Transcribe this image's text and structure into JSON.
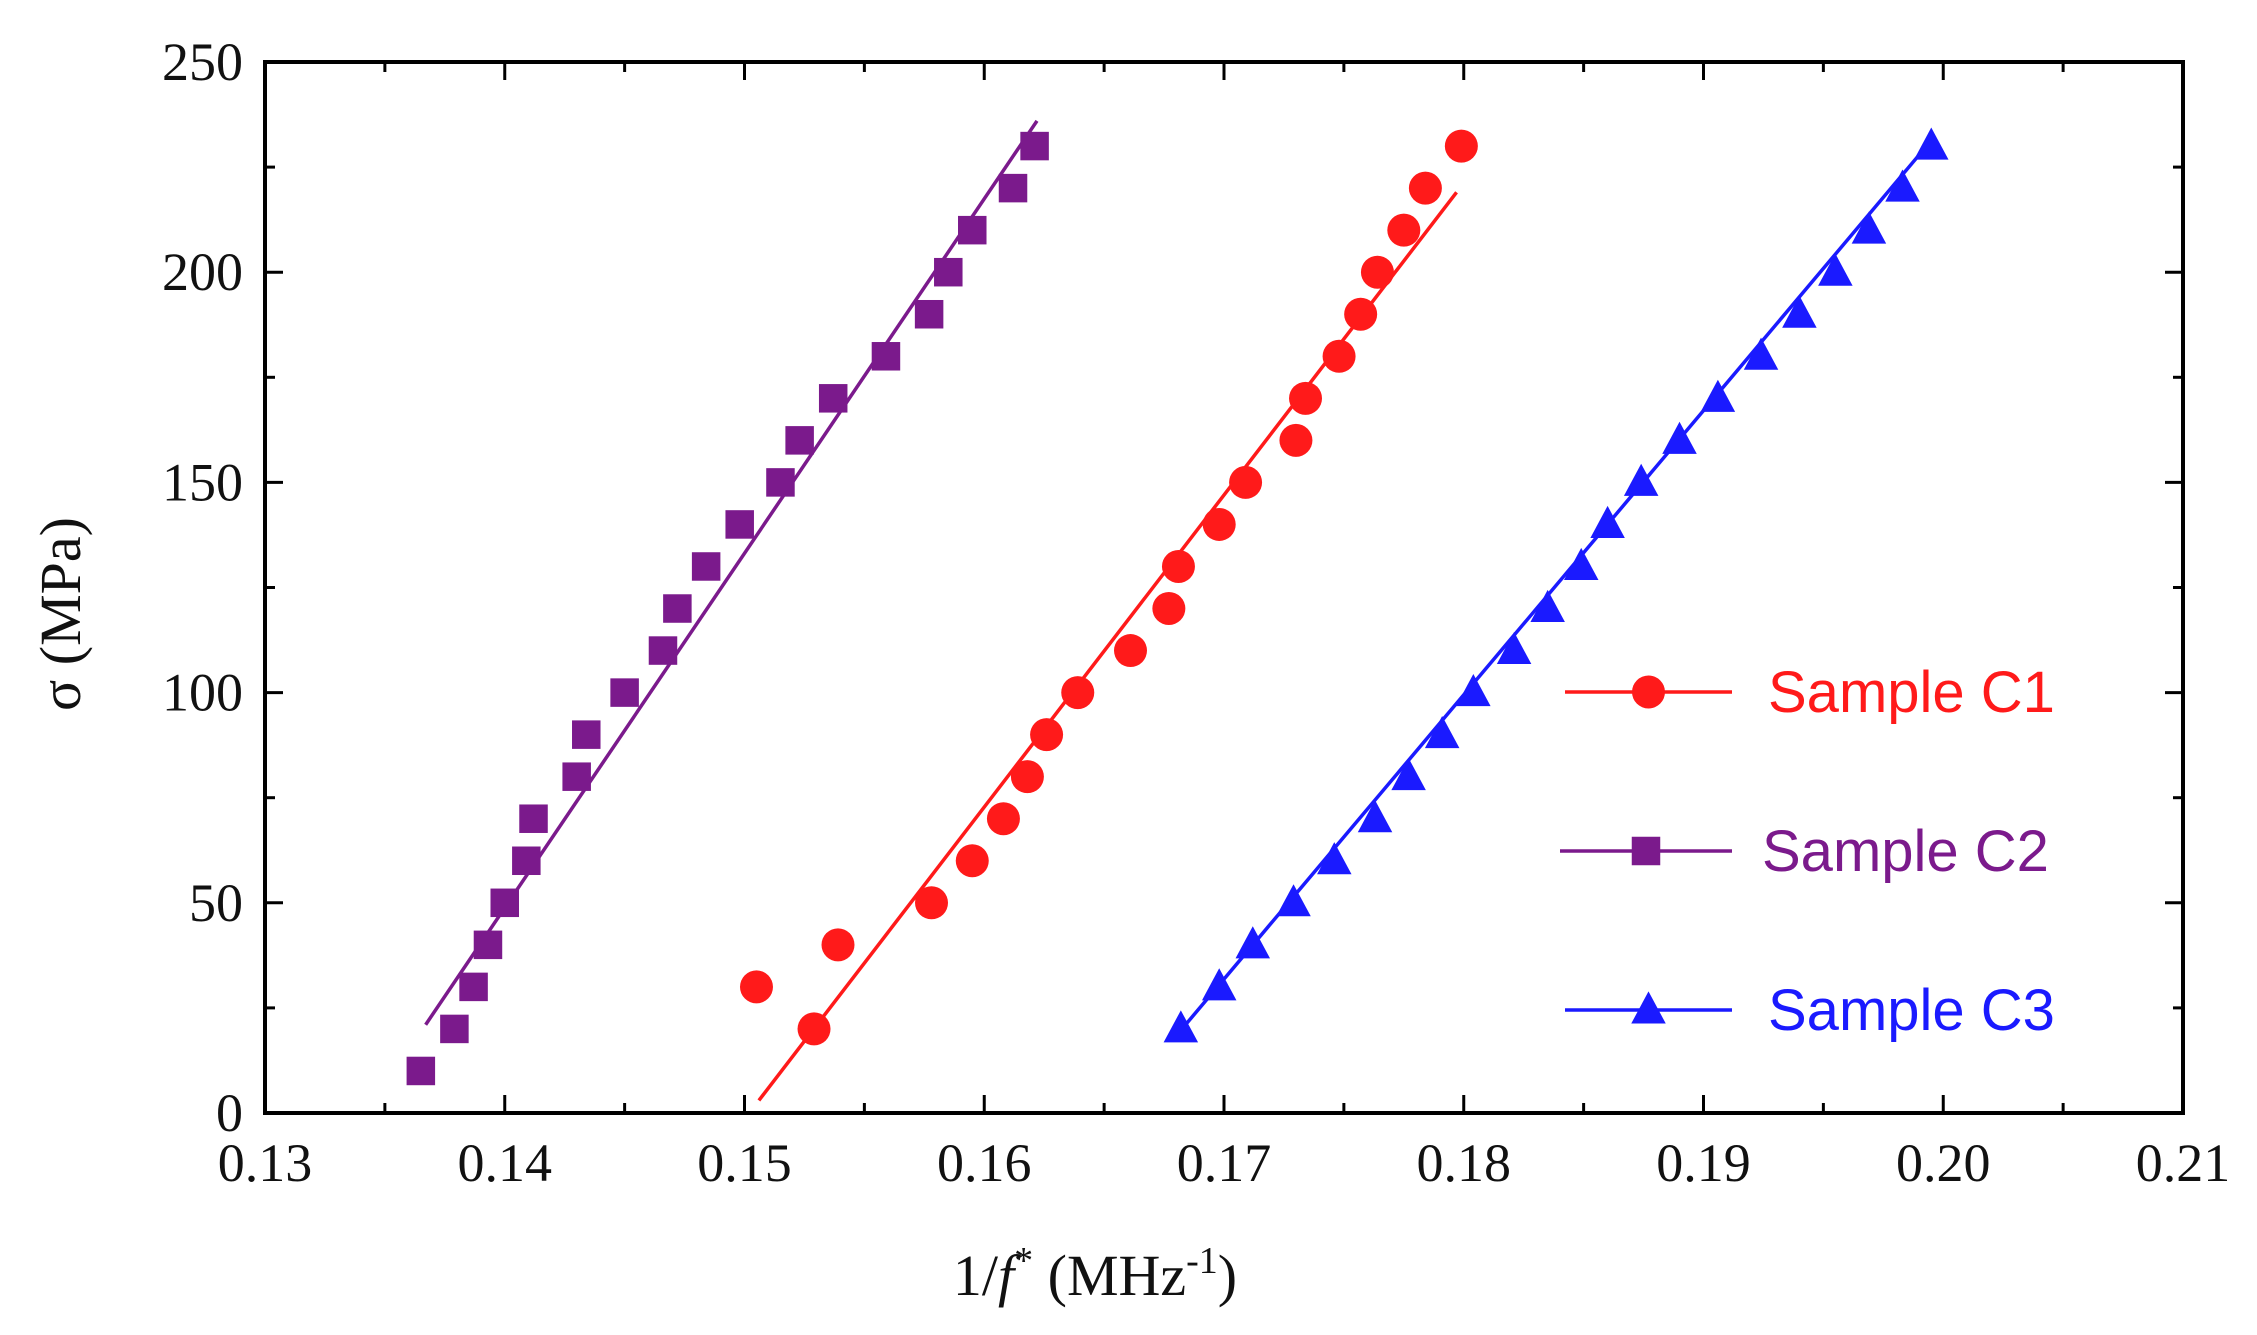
{
  "chart_data": {
    "type": "scatter",
    "title": "",
    "xlabel": {
      "prefix": "1/",
      "var": "f",
      "sup": "*",
      "units": " (MHz",
      "units_sup": "-1",
      "close": ")"
    },
    "ylabel": "σ (MPa)",
    "xlim": [
      0.13,
      0.21
    ],
    "ylim": [
      0,
      250
    ],
    "x_ticks": [
      "0.13",
      "0.14",
      "0.15",
      "0.16",
      "0.17",
      "0.18",
      "0.19",
      "0.20",
      "0.21"
    ],
    "y_ticks": [
      "0",
      "50",
      "100",
      "150",
      "200",
      "250"
    ],
    "grid": false,
    "legend_position": "right",
    "series": [
      {
        "name": "Sample C1",
        "color": "#ff1a1a",
        "marker": "circle",
        "x": [
          0.1505,
          0.1529,
          0.1539,
          0.1578,
          0.1595,
          0.1608,
          0.1618,
          0.1626,
          0.1639,
          0.1661,
          0.1677,
          0.1681,
          0.1698,
          0.1709,
          0.173,
          0.1734,
          0.1748,
          0.1757,
          0.1764,
          0.1775,
          0.1784,
          0.1799
        ],
        "y": [
          30,
          20,
          40,
          50,
          60,
          70,
          80,
          90,
          100,
          110,
          120,
          130,
          140,
          150,
          160,
          170,
          180,
          190,
          200,
          210,
          220,
          230
        ],
        "fit": {
          "x": [
            0.1506,
            0.1797
          ],
          "y": [
            3,
            219
          ]
        }
      },
      {
        "name": "Sample C2",
        "color": "#7b1a8c",
        "marker": "square",
        "x": [
          0.1365,
          0.1379,
          0.1387,
          0.1393,
          0.14,
          0.1409,
          0.1412,
          0.143,
          0.1434,
          0.145,
          0.1466,
          0.1472,
          0.1484,
          0.1498,
          0.1515,
          0.1523,
          0.1537,
          0.1559,
          0.1577,
          0.1585,
          0.1595,
          0.1612,
          0.1621
        ],
        "y": [
          10,
          20,
          30,
          40,
          50,
          60,
          70,
          80,
          90,
          100,
          110,
          120,
          130,
          140,
          150,
          160,
          170,
          180,
          190,
          200,
          210,
          220,
          230
        ],
        "fit": {
          "x": [
            0.1367,
            0.1622
          ],
          "y": [
            21,
            236
          ]
        }
      },
      {
        "name": "Sample C3",
        "color": "#1a1aff",
        "marker": "triangle",
        "x": [
          0.1682,
          0.1698,
          0.1712,
          0.1729,
          0.1746,
          0.1763,
          0.1777,
          0.1791,
          0.1804,
          0.1821,
          0.1835,
          0.1849,
          0.186,
          0.1874,
          0.189,
          0.1906,
          0.1924,
          0.194,
          0.1955,
          0.1969,
          0.1983,
          0.1995
        ],
        "y": [
          20,
          30,
          40,
          50,
          60,
          70,
          80,
          90,
          100,
          110,
          120,
          130,
          140,
          150,
          160,
          170,
          180,
          190,
          200,
          210,
          220,
          230
        ],
        "fit": {
          "x": [
            0.1681,
            0.1996
          ],
          "y": [
            19,
            232
          ]
        }
      }
    ]
  }
}
